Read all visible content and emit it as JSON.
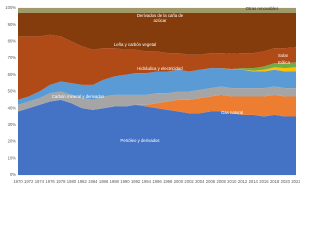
{
  "chart_data": {
    "type": "stacked_area",
    "x": [
      1970,
      1972,
      1974,
      1976,
      1978,
      1980,
      1982,
      1984,
      1986,
      1988,
      1990,
      1992,
      1994,
      1996,
      1998,
      2000,
      2002,
      2004,
      2006,
      2008,
      2010,
      2012,
      2014,
      2016,
      2018,
      2020,
      2022
    ],
    "xlim": [
      1970,
      2022
    ],
    "ylim": [
      0,
      100
    ],
    "yticks": [
      {
        "value": 0,
        "label": "0%"
      },
      {
        "value": 10,
        "label": "10%"
      },
      {
        "value": 20,
        "label": "20%"
      },
      {
        "value": 30,
        "label": "30%"
      },
      {
        "value": 40,
        "label": "40%"
      },
      {
        "value": 50,
        "label": "50%"
      },
      {
        "value": 60,
        "label": "60%"
      },
      {
        "value": 70,
        "label": "70%"
      },
      {
        "value": 80,
        "label": "80%"
      },
      {
        "value": 90,
        "label": "90%"
      },
      {
        "value": 100,
        "label": "100%"
      }
    ],
    "grid": true,
    "series": [
      {
        "name": "Petróleo y derivados",
        "color": "#4472c4",
        "values": [
          38,
          40,
          42,
          44,
          45,
          43,
          40,
          39,
          40,
          41,
          41,
          42,
          41,
          40,
          39,
          38,
          37,
          37,
          38,
          38,
          37,
          36,
          36,
          35,
          36,
          35,
          35
        ]
      },
      {
        "name": "Gas natural",
        "color": "#ed7d31",
        "values": [
          0,
          0,
          0,
          0,
          0,
          0,
          0,
          0,
          0,
          0,
          0,
          0,
          1,
          3,
          5,
          7,
          8,
          9,
          9,
          10,
          10,
          11,
          11,
          12,
          12,
          12,
          12
        ]
      },
      {
        "name": "Carbón mineral y derivados",
        "color": "#a5a5a5",
        "values": [
          4,
          4,
          4,
          5,
          5,
          5,
          6,
          6,
          7,
          7,
          7,
          6,
          6,
          6,
          5,
          5,
          5,
          5,
          5,
          5,
          5,
          5,
          5,
          5,
          5,
          5,
          5
        ]
      },
      {
        "name": "Hidráulica y electricidad",
        "color": "#5b9bd5",
        "values": [
          3,
          3,
          4,
          5,
          6,
          7,
          8,
          9,
          10,
          11,
          12,
          13,
          13,
          13,
          13,
          13,
          12,
          12,
          12,
          11,
          11,
          11,
          10,
          10,
          10,
          10,
          10
        ]
      },
      {
        "name": "Solar",
        "color": "#ffc000",
        "values": [
          0,
          0,
          0,
          0,
          0,
          0,
          0,
          0,
          0,
          0,
          0,
          0,
          0,
          0,
          0,
          0,
          0,
          0,
          0,
          0,
          0,
          0,
          0.5,
          1,
          1.5,
          2,
          2.5
        ]
      },
      {
        "name": "Eólica",
        "color": "#70ad47",
        "values": [
          0,
          0,
          0,
          0,
          0,
          0,
          0,
          0,
          0,
          0,
          0,
          0,
          0,
          0,
          0,
          0,
          0,
          0,
          0,
          0,
          0.5,
          1,
          1.5,
          2,
          2.5,
          3,
          3
        ]
      },
      {
        "name": "Leña y carbón vegetal",
        "color": "#b04a17",
        "values": [
          38,
          36,
          33,
          30,
          27,
          25,
          23,
          21,
          19,
          17,
          15,
          14,
          13,
          12,
          11,
          10,
          10,
          9,
          9,
          9,
          9,
          9,
          9,
          9,
          9,
          9,
          9
        ]
      },
      {
        "name": "Derivados de la caña de azúcar",
        "color": "#843c0c",
        "values": [
          14,
          14,
          14,
          13,
          14,
          17,
          20,
          22,
          21,
          21,
          22,
          22,
          23,
          23,
          24,
          24,
          25,
          25,
          24,
          24,
          24.5,
          24,
          24,
          23,
          21,
          21,
          20.5
        ]
      },
      {
        "name": "Otras renovables",
        "color": "#a09a6a",
        "values": [
          3,
          3,
          3,
          3,
          3,
          3,
          3,
          3,
          3,
          3,
          3,
          3,
          3,
          3,
          3,
          3,
          3,
          3,
          3,
          3,
          3,
          3,
          3,
          3,
          3,
          3,
          3
        ]
      }
    ]
  }
}
